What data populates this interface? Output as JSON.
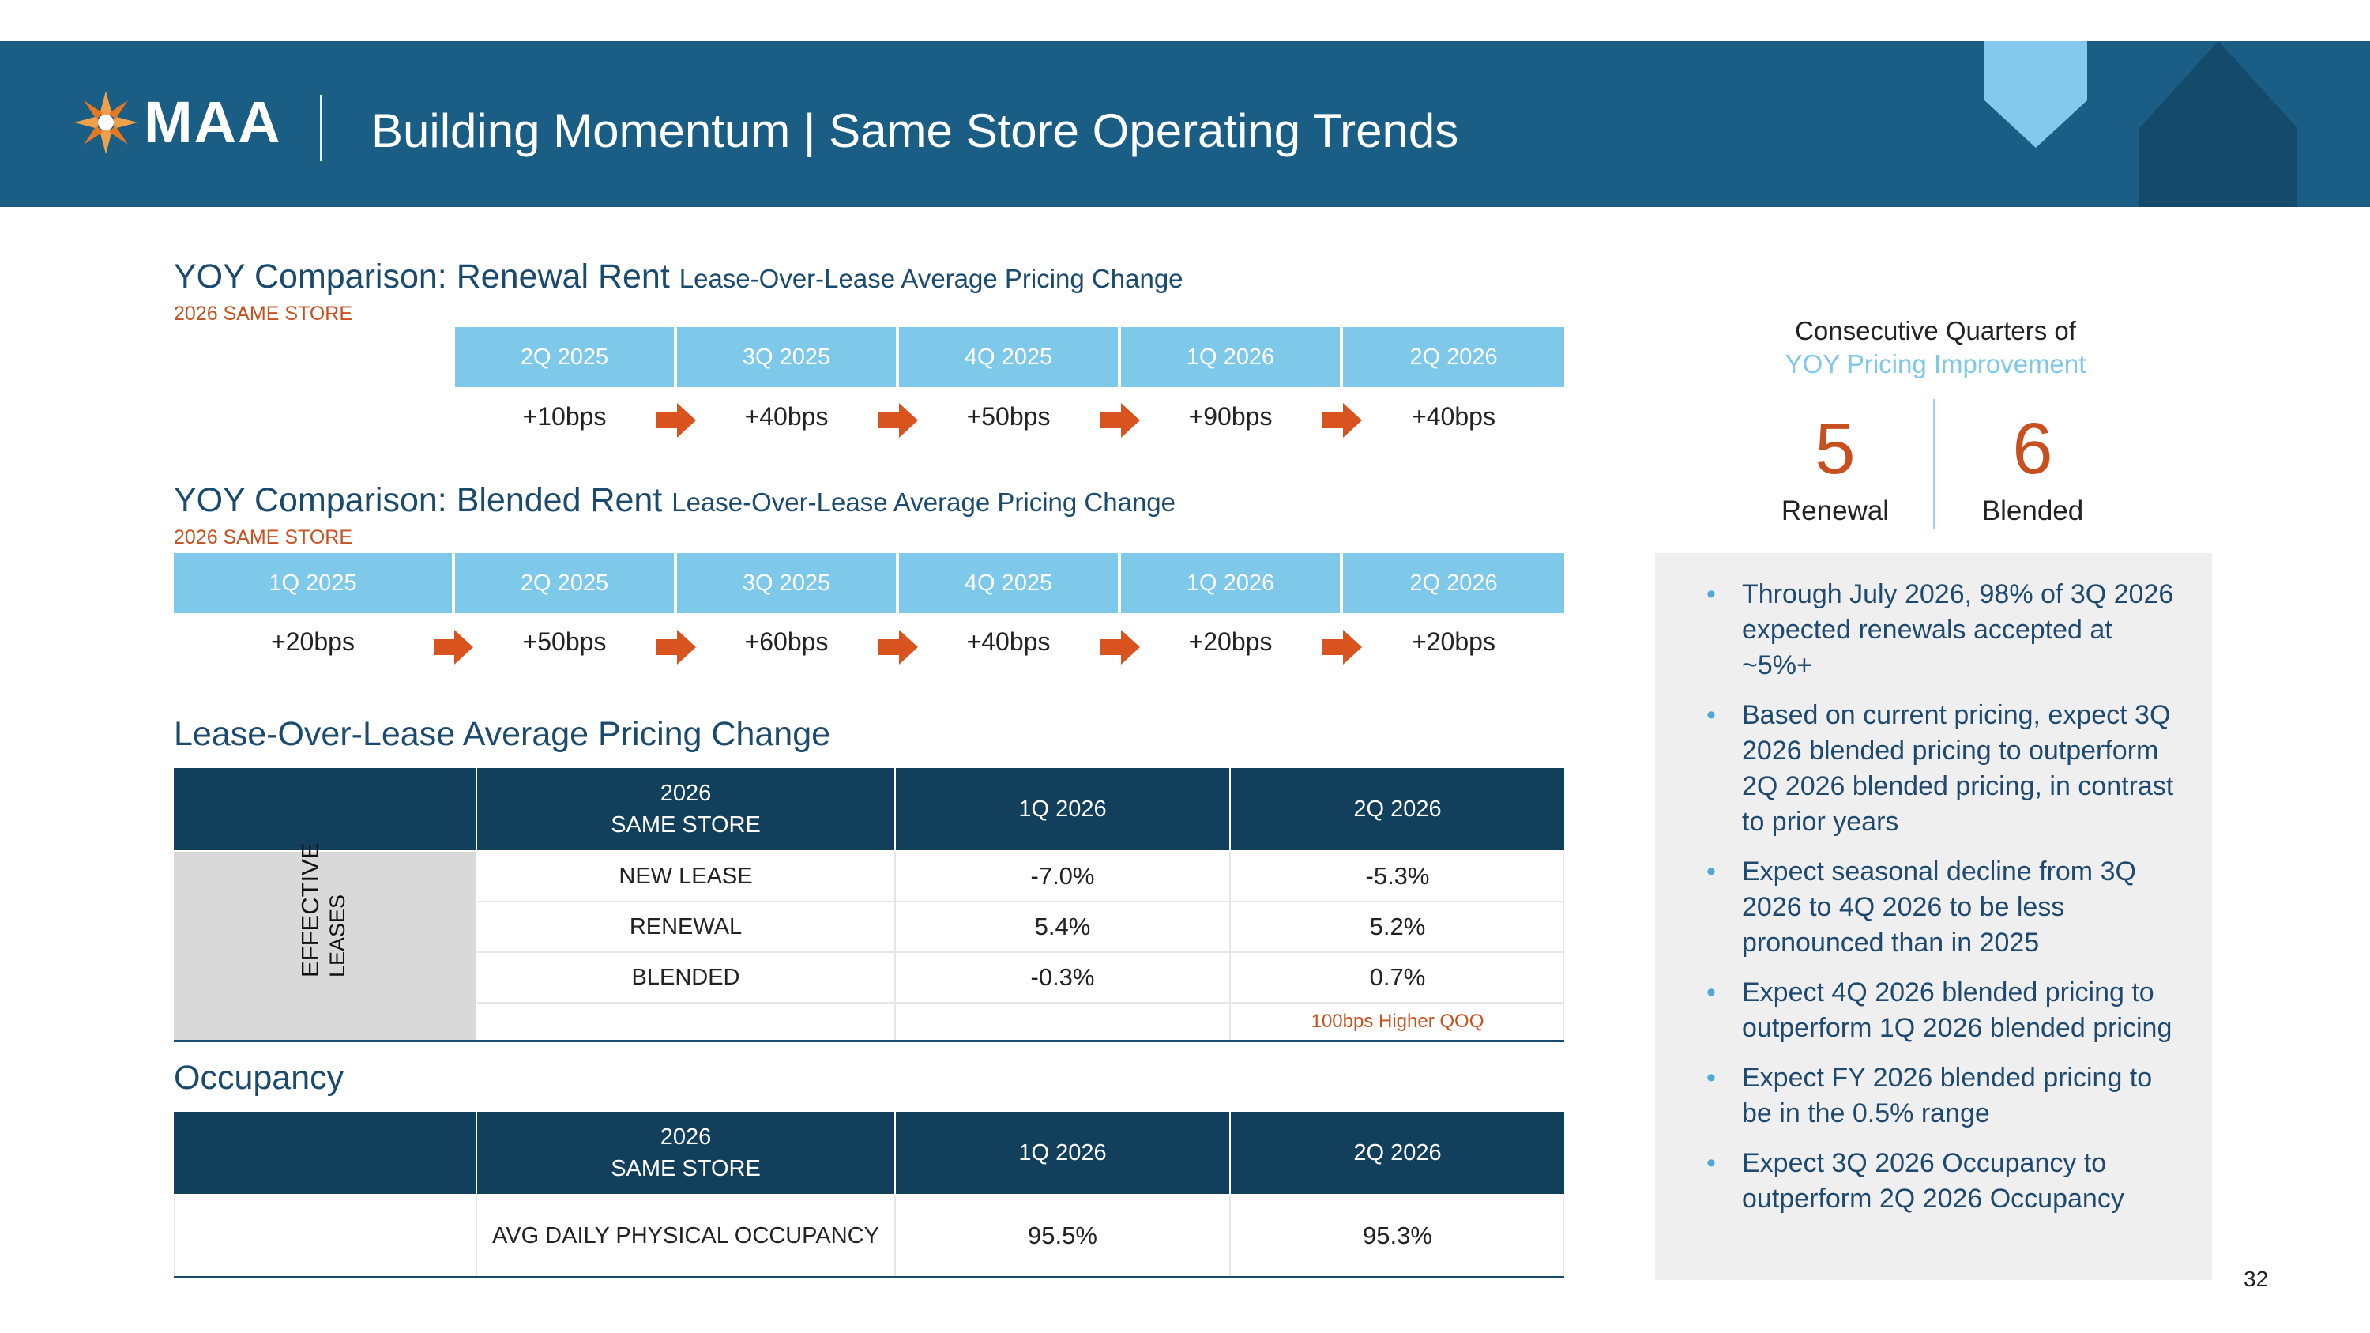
{
  "header": {
    "logo_text": "MAA",
    "title": "Building Momentum | Same Store Operating Trends"
  },
  "renewal_strip": {
    "title": "YOY Comparison: Renewal Rent",
    "subtitle": "Lease-Over-Lease Average Pricing Change",
    "tag": "2026 SAME STORE",
    "quarters": [
      "2Q 2025",
      "3Q 2025",
      "4Q 2025",
      "1Q 2026",
      "2Q 2026"
    ],
    "values": [
      "+10bps",
      "+40bps",
      "+50bps",
      "+90bps",
      "+40bps"
    ]
  },
  "blended_strip": {
    "title": "YOY Comparison: Blended Rent",
    "subtitle": "Lease-Over-Lease Average Pricing Change",
    "tag": "2026 SAME STORE",
    "quarters": [
      "1Q 2025",
      "2Q 2025",
      "3Q 2025",
      "4Q 2025",
      "1Q 2026",
      "2Q 2026"
    ],
    "values": [
      "+20bps",
      "+50bps",
      "+60bps",
      "+40bps",
      "+20bps",
      "+20bps"
    ]
  },
  "lol_table": {
    "title": "Lease-Over-Lease Average Pricing Change",
    "header": [
      "2026\nSAME STORE",
      "1Q 2026",
      "2Q 2026"
    ],
    "side_label_line1": "EFFECTIVE",
    "side_label_line2": "LEASES",
    "rows": [
      {
        "label": "NEW LEASE",
        "q1": "-7.0%",
        "q2": "-5.3%"
      },
      {
        "label": "RENEWAL",
        "q1": "5.4%",
        "q2": "5.2%"
      },
      {
        "label": "BLENDED",
        "q1": "-0.3%",
        "q2": "0.7%"
      }
    ],
    "note": "100bps Higher QOQ"
  },
  "occupancy_table": {
    "title": "Occupancy",
    "header": [
      "2026\nSAME STORE",
      "1Q 2026",
      "2Q 2026"
    ],
    "row": {
      "label": "AVG DAILY PHYSICAL OCCUPANCY",
      "q1": "95.5%",
      "q2": "95.3%"
    }
  },
  "consecutive": {
    "title": "Consecutive Quarters of",
    "subtitle": "YOY Pricing Improvement",
    "renewal_value": "5",
    "renewal_label": "Renewal",
    "blended_value": "6",
    "blended_label": "Blended"
  },
  "bullets": [
    "Through July 2026, 98% of 3Q 2026 expected renewals accepted at ~5%+",
    "Based on current pricing, expect 3Q 2026 blended pricing to outperform 2Q 2026 blended pricing, in contrast to prior years",
    "Expect seasonal decline from 3Q 2026 to 4Q 2026 to be less pronounced than in 2025",
    "Expect 4Q 2026 blended pricing to outperform 1Q 2026 blended pricing",
    "Expect FY 2026 blended pricing to be in the 0.5% range",
    "Expect 3Q 2026 Occupancy to outperform 2Q 2026 Occupancy"
  ],
  "page_number": "32",
  "colors": {
    "header_band": "#1a5e85",
    "quarter_fill": "#7ec8ea",
    "table_header": "#123f5c",
    "accent_orange": "#c8501e",
    "panel_gray": "#efefef"
  },
  "icons": {
    "logo": "starburst-logo-icon",
    "arrow": "arrow-right-icon"
  }
}
